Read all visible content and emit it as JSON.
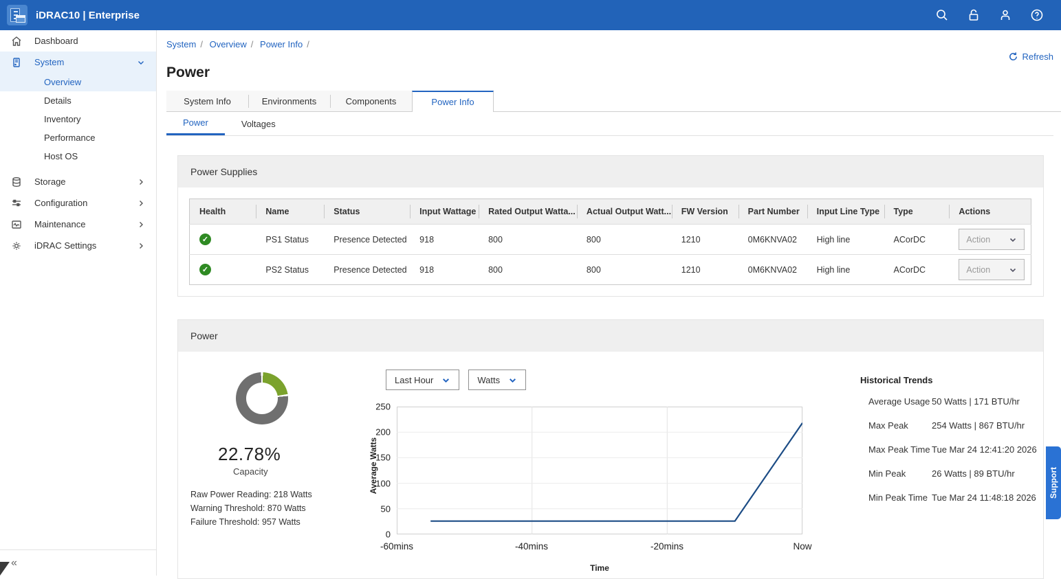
{
  "header": {
    "title": "iDRAC10 | Enterprise",
    "icons": [
      "search",
      "lock",
      "user",
      "help"
    ]
  },
  "sidebar": {
    "items": [
      {
        "label": "Dashboard"
      },
      {
        "label": "System"
      },
      {
        "label": "Storage"
      },
      {
        "label": "Configuration"
      },
      {
        "label": "Maintenance"
      },
      {
        "label": "iDRAC Settings"
      }
    ],
    "system_children": [
      {
        "label": "Overview"
      },
      {
        "label": "Details"
      },
      {
        "label": "Inventory"
      },
      {
        "label": "Performance"
      },
      {
        "label": "Host OS"
      }
    ]
  },
  "breadcrumb": {
    "items": [
      "System",
      "Overview",
      "Power Info"
    ],
    "separator": "/"
  },
  "refresh_label": "Refresh",
  "page_title": "Power",
  "tabs": [
    {
      "label": "System Info"
    },
    {
      "label": "Environments"
    },
    {
      "label": "Components"
    },
    {
      "label": "Power Info"
    }
  ],
  "subtabs": [
    {
      "label": "Power"
    },
    {
      "label": "Voltages"
    }
  ],
  "power_supplies": {
    "section_title": "Power Supplies",
    "columns": [
      "Health",
      "Name",
      "Status",
      "Input Wattage",
      "Rated Output Watta...",
      "Actual Output Watt...",
      "FW Version",
      "Part Number",
      "Input Line Type",
      "Type",
      "Actions"
    ],
    "rows": [
      {
        "health": "ok",
        "name": "PS1 Status",
        "status": "Presence Detected",
        "input_wattage": "918",
        "rated_output": "800",
        "actual_output": "800",
        "fw_version": "1210",
        "part_number": "0M6KNVA02",
        "input_line_type": "High line",
        "type": "ACorDC",
        "action": "Action"
      },
      {
        "health": "ok",
        "name": "PS2 Status",
        "status": "Presence Detected",
        "input_wattage": "918",
        "rated_output": "800",
        "actual_output": "800",
        "fw_version": "1210",
        "part_number": "0M6KNVA02",
        "input_line_type": "High line",
        "type": "ACorDC",
        "action": "Action"
      }
    ]
  },
  "power_section": {
    "section_title": "Power",
    "capacity_percent": "22.78%",
    "capacity_label": "Capacity",
    "details": [
      "Raw Power Reading: 218 Watts",
      "Warning Threshold: 870 Watts",
      "Failure Threshold: 957 Watts"
    ],
    "period_dropdown": "Last Hour",
    "unit_dropdown": "Watts"
  },
  "chart_data": [
    {
      "type": "line",
      "title": "Average power consumption over last hour",
      "xlabel": "Time",
      "ylabel": "Average Watts",
      "ylim": [
        0,
        250
      ],
      "yticks": [
        250,
        200,
        150,
        100,
        50,
        0
      ],
      "xticks": [
        "-60mins",
        "-40mins",
        "-20mins",
        "Now"
      ],
      "x_range_mins": [
        -60,
        0
      ],
      "grid": true,
      "legend": "none",
      "series": [
        {
          "name": "Average Watts",
          "color": "#1c4c85",
          "points": [
            {
              "x": -55,
              "y": 26
            },
            {
              "x": -10,
              "y": 26
            },
            {
              "x": 0,
              "y": 218
            }
          ]
        }
      ]
    },
    {
      "type": "pie",
      "title": "Power capacity used",
      "labels": [
        "Used",
        "Remaining"
      ],
      "values": [
        22.78,
        77.22
      ],
      "colors": [
        "#7ba22d",
        "#6f6f6f"
      ]
    }
  ],
  "historical_trends": {
    "title": "Historical Trends",
    "rows": [
      {
        "label": "Average Usage",
        "value": "50 Watts | 171 BTU/hr"
      },
      {
        "label": "Max Peak",
        "value": "254 Watts | 867 BTU/hr"
      },
      {
        "label": "Max Peak Time",
        "value": "Tue Mar 24 12:41:20 2026"
      },
      {
        "label": "Min Peak",
        "value": "26 Watts | 89 BTU/hr"
      },
      {
        "label": "Min Peak Time",
        "value": "Tue Mar 24 11:48:18 2026"
      }
    ]
  },
  "support_label": "Support"
}
